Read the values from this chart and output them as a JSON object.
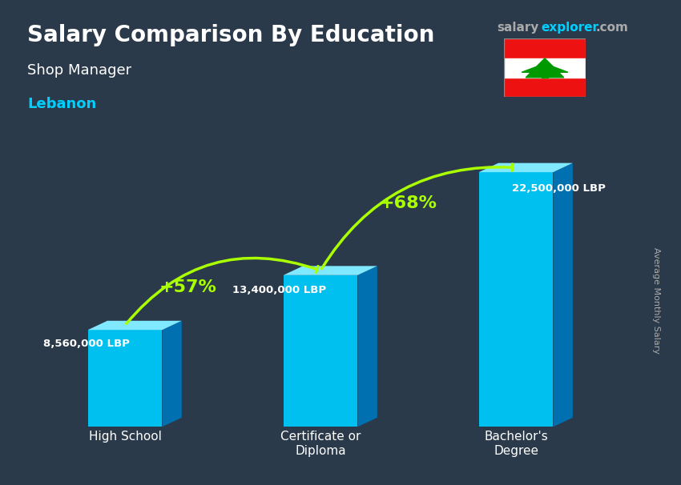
{
  "title": "Salary Comparison By Education",
  "subtitle": "Shop Manager",
  "country": "Lebanon",
  "categories": [
    "High School",
    "Certificate or\nDiploma",
    "Bachelor's\nDegree"
  ],
  "values": [
    8560000,
    13400000,
    22500000
  ],
  "value_labels": [
    "8,560,000 LBP",
    "13,400,000 LBP",
    "22,500,000 LBP"
  ],
  "pct_labels": [
    "+57%",
    "+68%"
  ],
  "bar_color_top": "#00cfff",
  "bar_color_mid": "#00aadd",
  "bar_color_bottom": "#0077bb",
  "bar_color_side": "#005fa3",
  "bg_color": "#2a3a4a",
  "title_color": "#ffffff",
  "subtitle_color": "#ffffff",
  "country_color": "#00cfff",
  "label_color": "#ffffff",
  "pct_color": "#aaff00",
  "arrow_color": "#aaff00",
  "site_color_salary": "#aaaaaa",
  "site_color_explorer": "#00cfff",
  "ylabel": "Average Monthly Salary",
  "ylabel_color": "#aaaaaa",
  "bar_width": 0.38,
  "bar_positions": [
    0.5,
    1.5,
    2.5
  ],
  "ylim": [
    0,
    27000000
  ]
}
